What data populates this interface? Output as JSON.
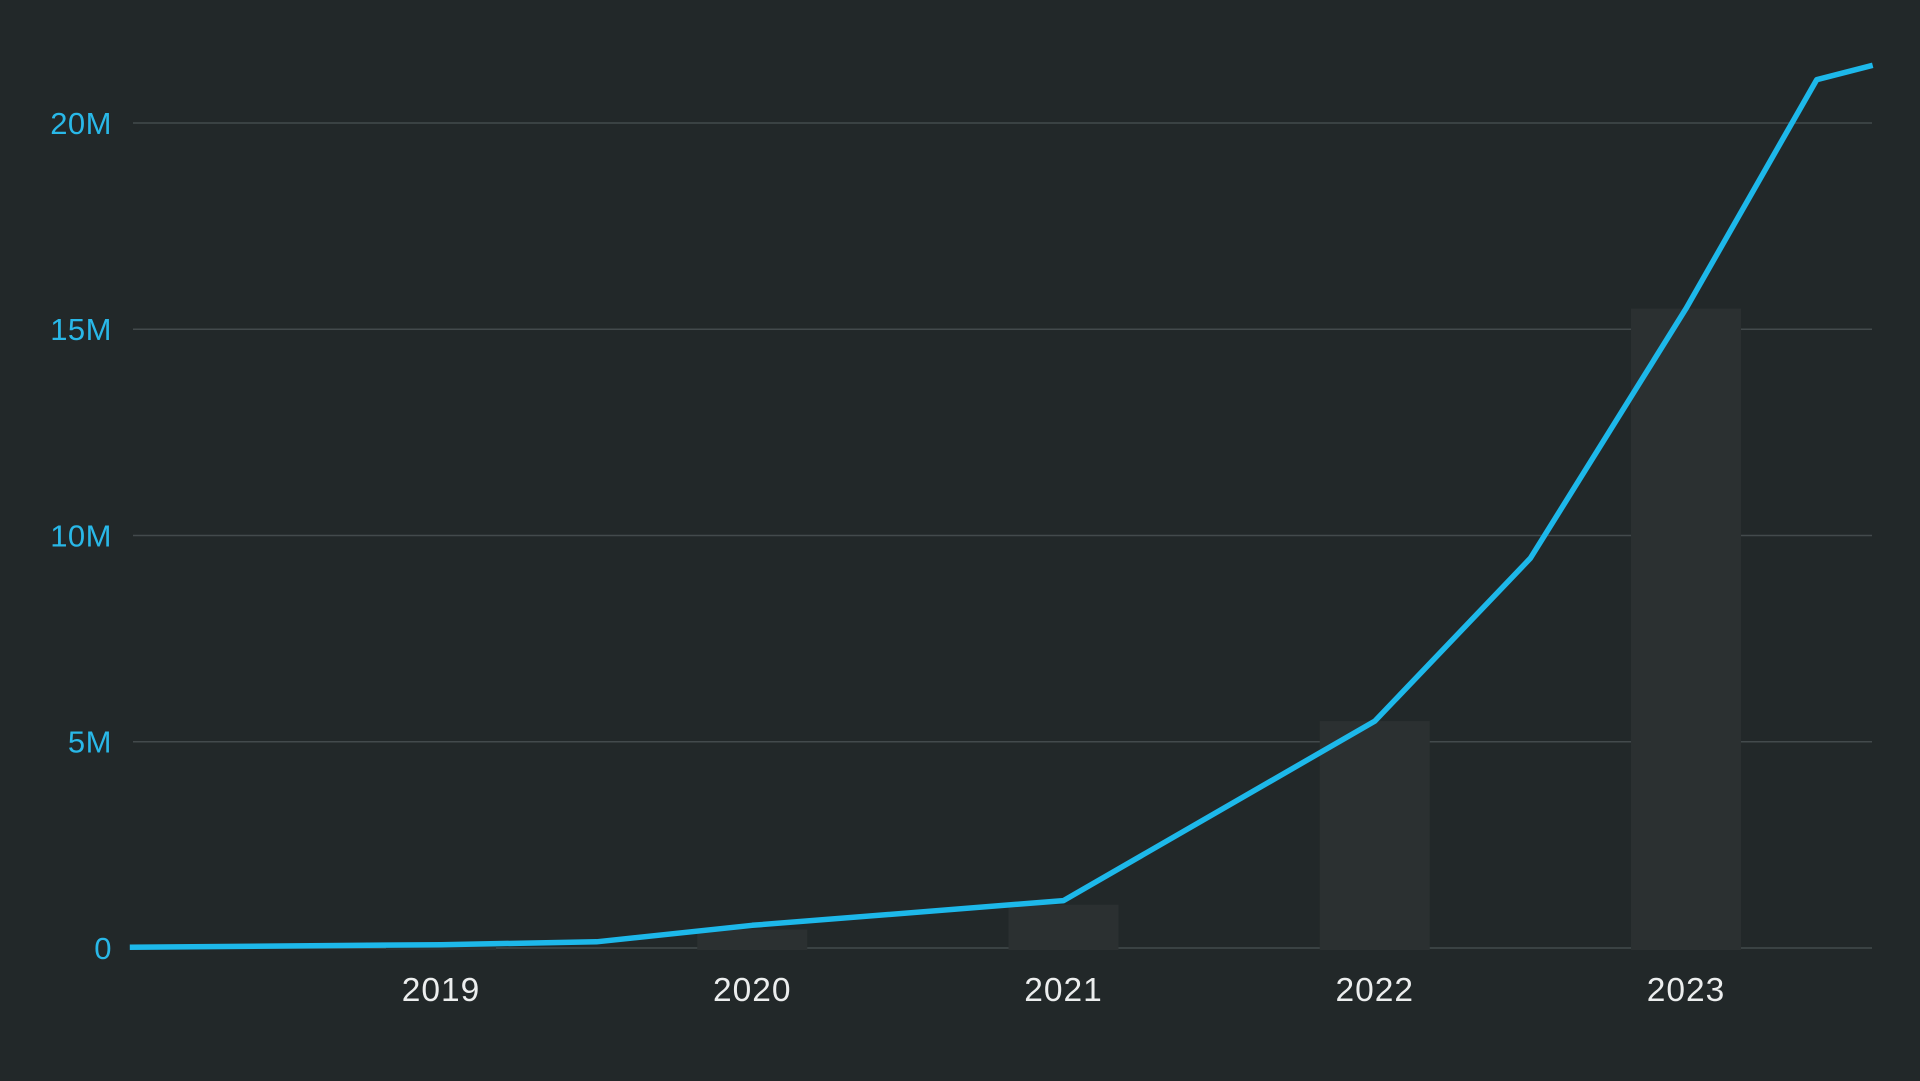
{
  "page": {
    "background": "#222829"
  },
  "chart_data": {
    "type": "line+bar",
    "title": "",
    "legend": false,
    "grid": {
      "show": true,
      "color": "#434a4c"
    },
    "y_axis": {
      "tick_labels": [
        "0",
        "5M",
        "10M",
        "15M",
        "20M"
      ],
      "tick_values_m": [
        0,
        5,
        10,
        15,
        20
      ],
      "unit": "millions",
      "label_color": "#29b8e8",
      "visible_range_m": [
        0,
        21.5
      ]
    },
    "x_axis": {
      "tick_labels": [
        "2019",
        "2020",
        "2021",
        "2022",
        "2023"
      ],
      "tick_years": [
        2019,
        2020,
        2021,
        2022,
        2023
      ],
      "label_color": "#eceeee",
      "visible_range_years": [
        2018.0,
        2023.6
      ]
    },
    "series": [
      {
        "name": "background-bars",
        "type": "bar",
        "color": "#2b3031",
        "points": [
          {
            "year": 2019,
            "value_m": 0.08
          },
          {
            "year": 2020,
            "value_m": 0.45
          },
          {
            "year": 2021,
            "value_m": 1.05
          },
          {
            "year": 2022,
            "value_m": 5.5
          },
          {
            "year": 2023,
            "value_m": 15.5
          }
        ]
      },
      {
        "name": "growth-line",
        "type": "line",
        "color": "#1db8ea",
        "stroke_width": 5.5,
        "points": [
          {
            "year": 2018.0,
            "value_m": 0.02
          },
          {
            "year": 2019.0,
            "value_m": 0.08
          },
          {
            "year": 2019.5,
            "value_m": 0.15
          },
          {
            "year": 2020.0,
            "value_m": 0.55
          },
          {
            "year": 2021.0,
            "value_m": 1.15
          },
          {
            "year": 2022.0,
            "value_m": 5.5
          },
          {
            "year": 2022.5,
            "value_m": 9.45
          },
          {
            "year": 2023.0,
            "value_m": 15.5
          },
          {
            "year": 2023.42,
            "value_m": 21.05
          },
          {
            "year": 2023.6,
            "value_m": 21.4
          }
        ]
      }
    ]
  }
}
